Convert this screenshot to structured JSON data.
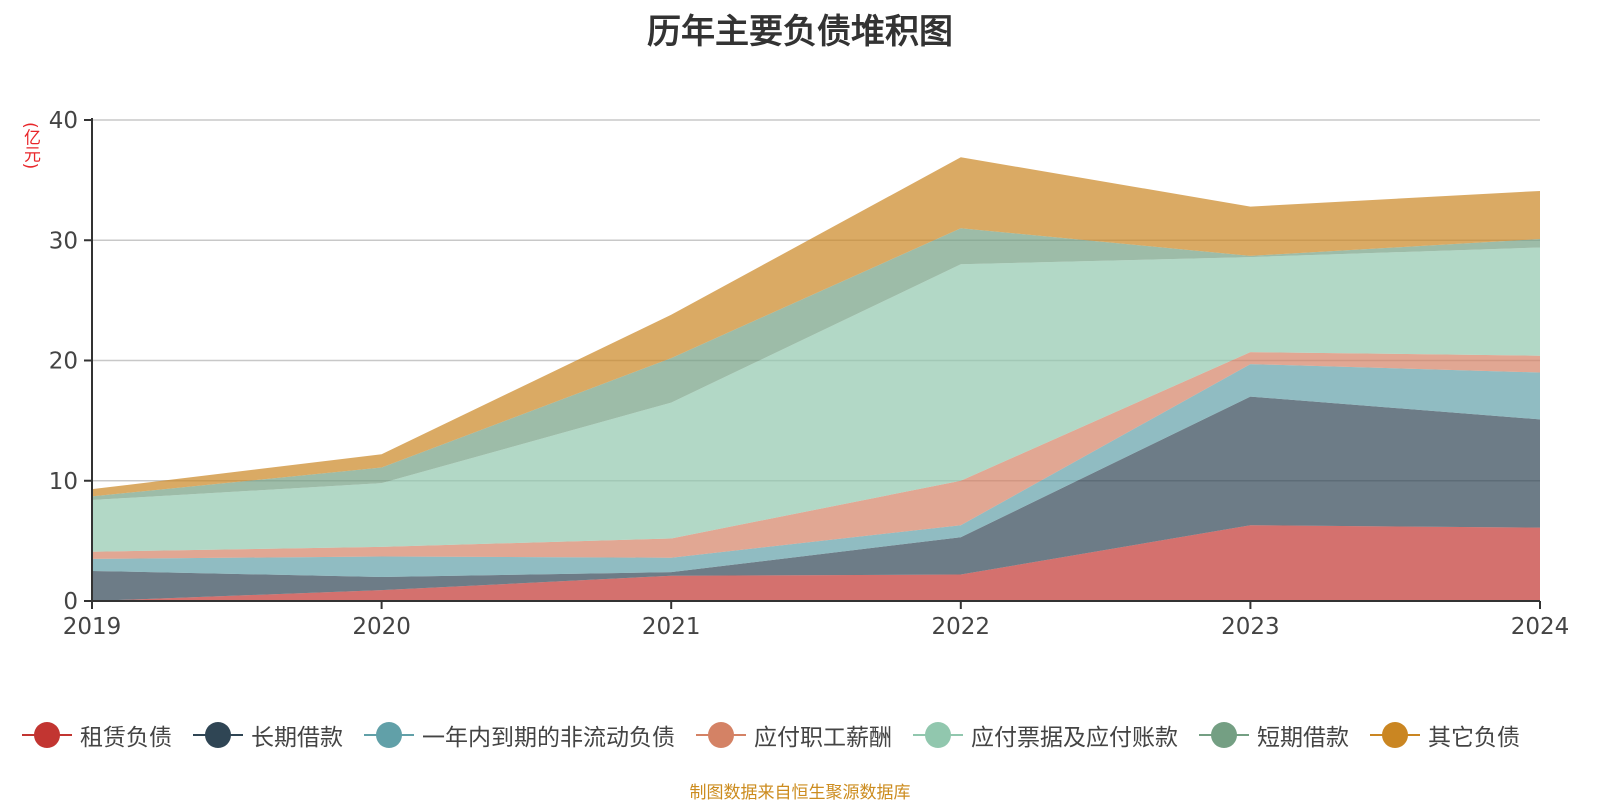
{
  "chart_data": {
    "type": "area",
    "stacked": true,
    "title": "历年主要负债堆积图",
    "ylabel": "(亿元)",
    "xlabel": "",
    "categories": [
      "2019",
      "2020",
      "2021",
      "2022",
      "2023",
      "2024"
    ],
    "ylim": [
      0,
      40
    ],
    "yticks": [
      0,
      10,
      20,
      30,
      40
    ],
    "grid": true,
    "legend_position": "bottom",
    "series": [
      {
        "name": "租赁负债",
        "color": "#c23531",
        "values": [
          0.0,
          0.9,
          2.1,
          2.2,
          6.3,
          6.1
        ]
      },
      {
        "name": "长期借款",
        "color": "#2f4554",
        "values": [
          2.5,
          1.1,
          0.3,
          3.1,
          10.7,
          9.0
        ]
      },
      {
        "name": "一年内到期的非流动负债",
        "color": "#61a0a8",
        "values": [
          1.0,
          1.7,
          1.2,
          1.0,
          2.7,
          3.9
        ]
      },
      {
        "name": "应付职工薪酬",
        "color": "#d48265",
        "values": [
          0.6,
          0.8,
          1.6,
          3.7,
          1.0,
          1.4
        ]
      },
      {
        "name": "应付票据及应付账款",
        "color": "#91c7ae",
        "values": [
          4.3,
          5.3,
          11.3,
          18.0,
          7.9,
          9.0
        ]
      },
      {
        "name": "短期借款",
        "color": "#749f83",
        "values": [
          0.3,
          1.3,
          3.7,
          3.0,
          0.1,
          0.7
        ]
      },
      {
        "name": "其它负债",
        "color": "#ca8622",
        "values": [
          0.6,
          1.1,
          3.6,
          5.9,
          4.1,
          4.0
        ]
      }
    ]
  },
  "source_note": "制图数据来自恒生聚源数据库"
}
